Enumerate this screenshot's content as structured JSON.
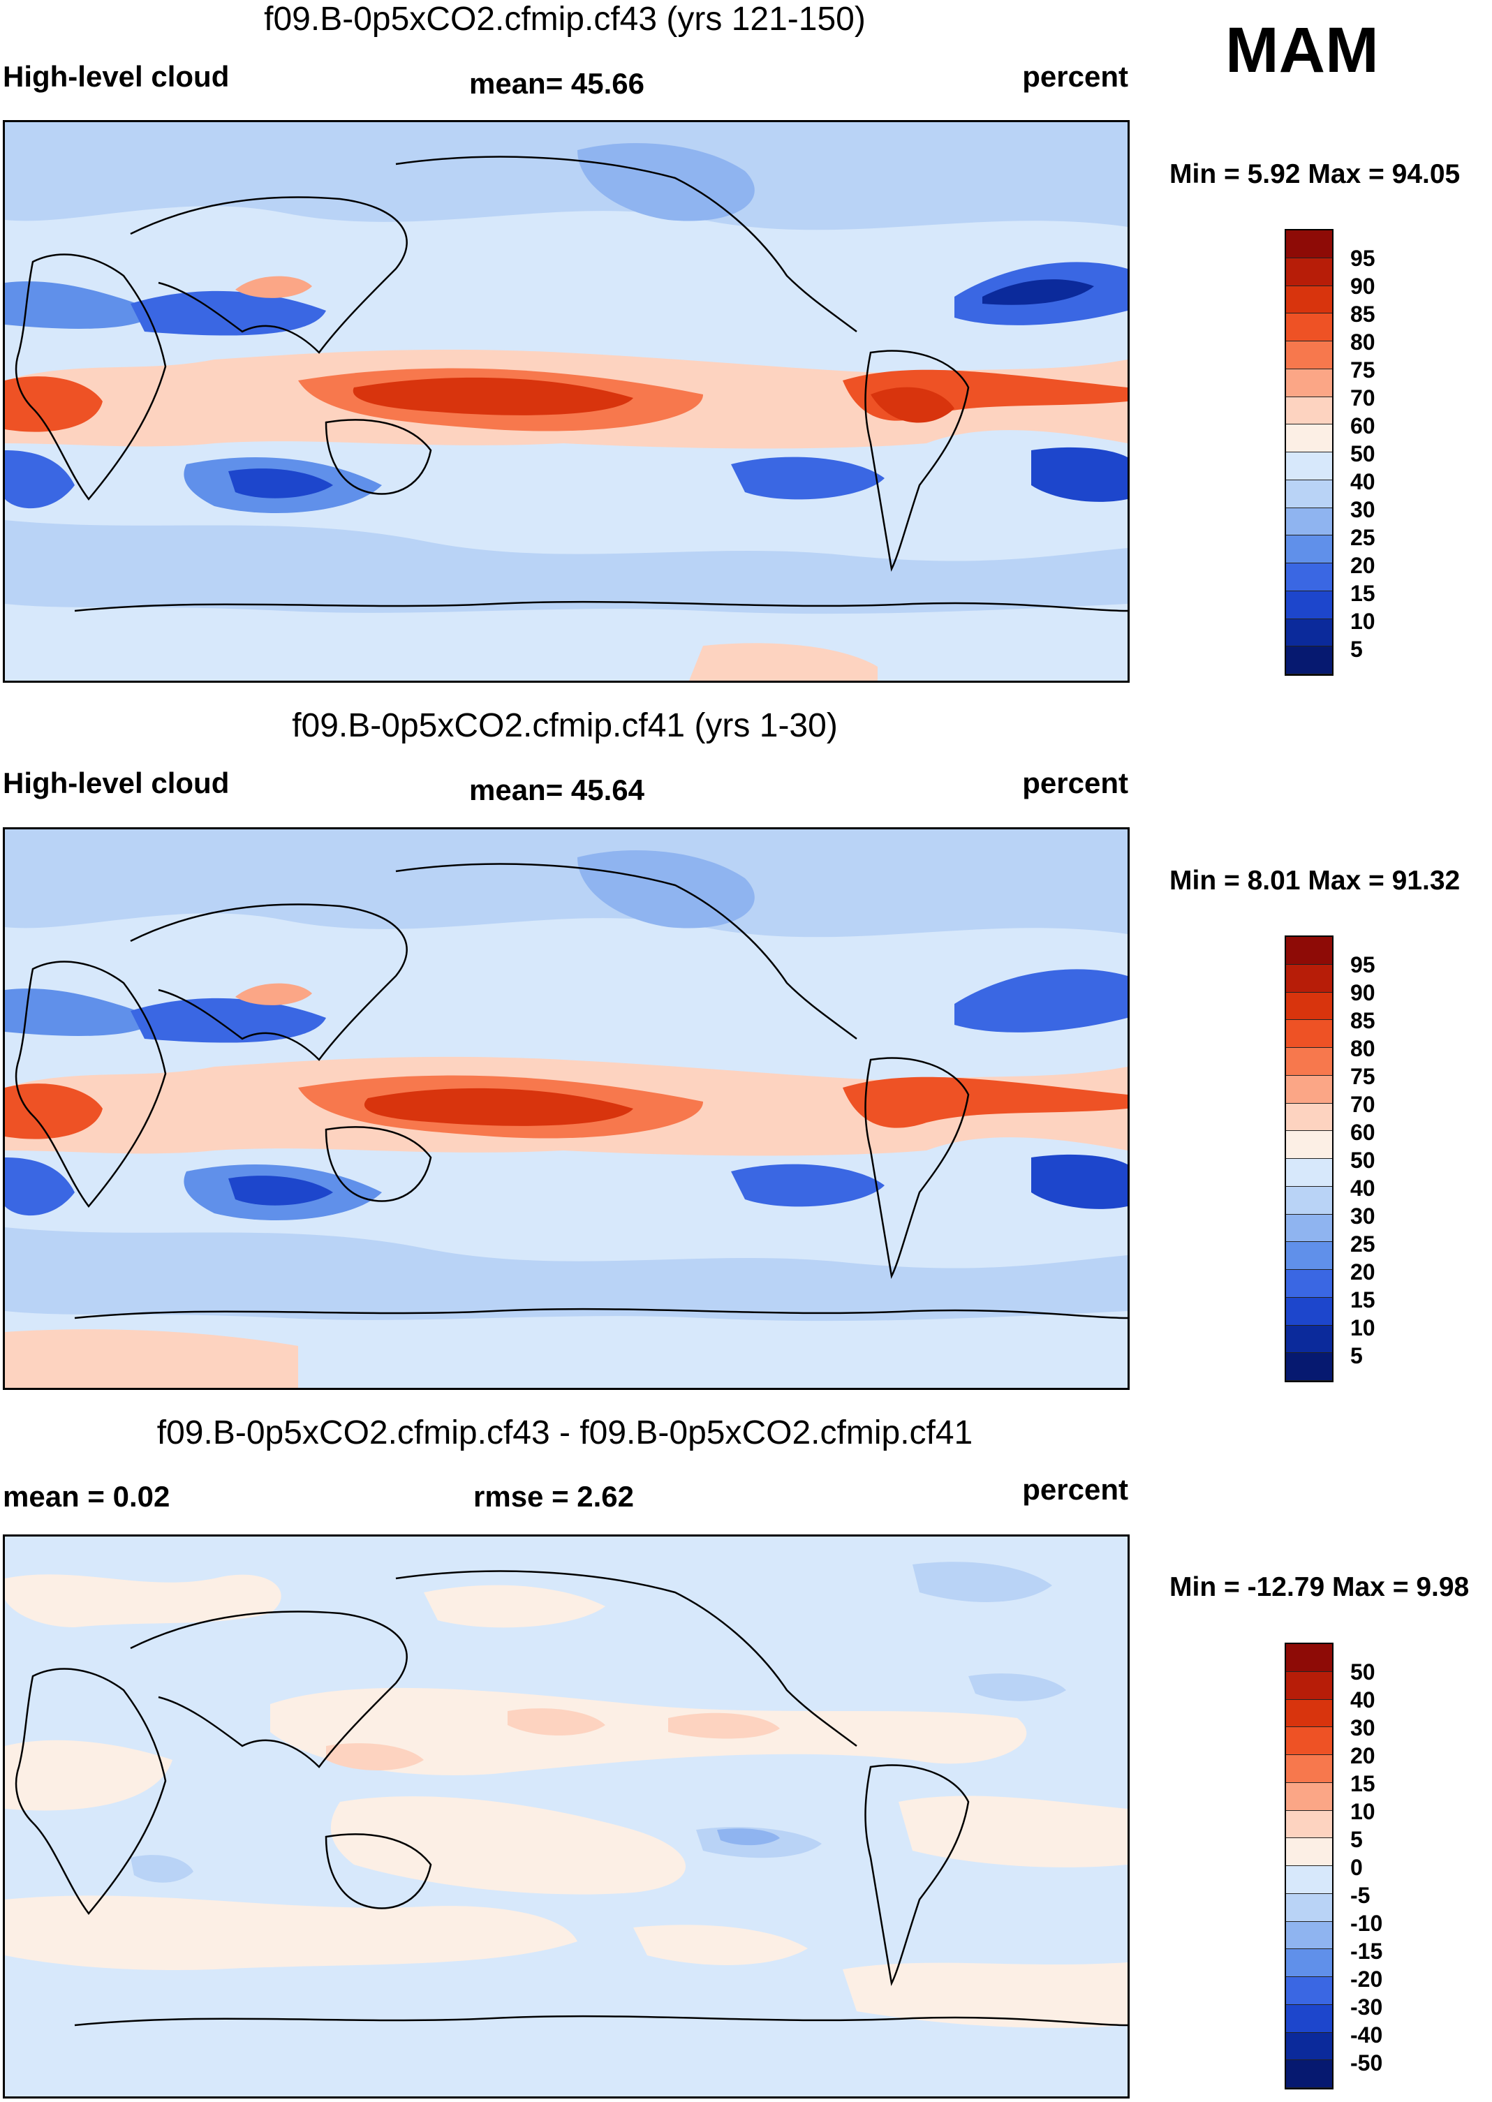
{
  "season": "MAM",
  "panels": [
    {
      "title": "f09.B-0p5xCO2.cfmip.cf43 (yrs 121-150)",
      "left_label": "High-level cloud",
      "center_label": "mean=  45.66",
      "right_label": "percent",
      "minmax": "Min =   5.92 Max =  94.05",
      "colorbar_levels": [
        "95",
        "90",
        "85",
        "80",
        "75",
        "70",
        "60",
        "50",
        "40",
        "30",
        "25",
        "20",
        "15",
        "10",
        "5"
      ],
      "colorbar_colors": [
        "#8e0b06",
        "#b71d08",
        "#d8340d",
        "#ee5225",
        "#f7784d",
        "#fba686",
        "#fdd3c0",
        "#fcefe5",
        "#d7e8fb",
        "#b9d3f6",
        "#8fb4f0",
        "#6090ea",
        "#3a67e3",
        "#1d46cc",
        "#0b2a9b",
        "#061970"
      ]
    },
    {
      "title": "f09.B-0p5xCO2.cfmip.cf41 (yrs 1-30)",
      "left_label": "High-level cloud",
      "center_label": "mean=  45.64",
      "right_label": "percent",
      "minmax": "Min =   8.01 Max =  91.32",
      "colorbar_levels": [
        "95",
        "90",
        "85",
        "80",
        "75",
        "70",
        "60",
        "50",
        "40",
        "30",
        "25",
        "20",
        "15",
        "10",
        "5"
      ],
      "colorbar_colors": [
        "#8e0b06",
        "#b71d08",
        "#d8340d",
        "#ee5225",
        "#f7784d",
        "#fba686",
        "#fdd3c0",
        "#fcefe5",
        "#d7e8fb",
        "#b9d3f6",
        "#8fb4f0",
        "#6090ea",
        "#3a67e3",
        "#1d46cc",
        "#0b2a9b",
        "#061970"
      ]
    },
    {
      "title": "f09.B-0p5xCO2.cfmip.cf43 - f09.B-0p5xCO2.cfmip.cf41",
      "left_label": "mean =   0.02",
      "center_label": "rmse =   2.62",
      "right_label": "percent",
      "minmax": "Min = -12.79 Max =   9.98",
      "colorbar_levels": [
        "50",
        "40",
        "30",
        "20",
        "15",
        "10",
        "5",
        "0",
        "-5",
        "-10",
        "-15",
        "-20",
        "-30",
        "-40",
        "-50"
      ],
      "colorbar_colors": [
        "#8e0b06",
        "#b71d08",
        "#d8340d",
        "#ee5225",
        "#f7784d",
        "#fba686",
        "#fdd3c0",
        "#fcefe5",
        "#d7e8fb",
        "#b9d3f6",
        "#8fb4f0",
        "#6090ea",
        "#3a67e3",
        "#1d46cc",
        "#0b2a9b",
        "#061970"
      ]
    }
  ]
}
